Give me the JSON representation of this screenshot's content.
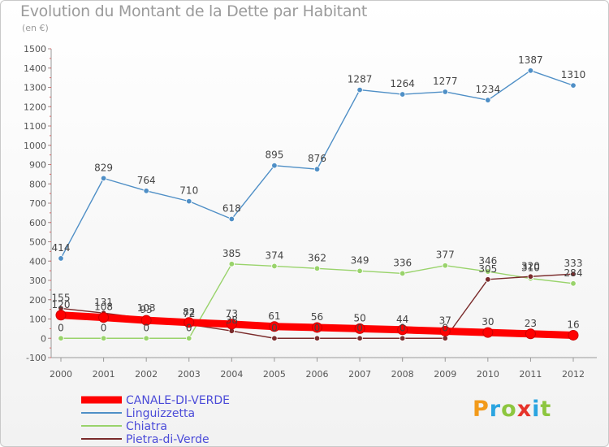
{
  "title": "Evolution du Montant de la Dette par Habitant",
  "unit": "(en €)",
  "logo_text": "Proxiti",
  "chart_data": {
    "type": "line",
    "x": [
      "2000",
      "2001",
      "2002",
      "2003",
      "2004",
      "2005",
      "2006",
      "2007",
      "2008",
      "2009",
      "2010",
      "2011",
      "2012"
    ],
    "ylim": [
      -100,
      1500
    ],
    "yticks": [
      -100,
      0,
      100,
      200,
      300,
      400,
      500,
      600,
      700,
      800,
      900,
      1000,
      1100,
      1200,
      1300,
      1400,
      1500
    ],
    "grid": false,
    "legend_position": "bottom-left",
    "series": [
      {
        "name": "CANALE-DI-VERDE",
        "color": "#ff0000",
        "values": [
          120,
          108,
          93,
          82,
          73,
          61,
          56,
          50,
          44,
          37,
          30,
          23,
          16
        ],
        "labels": [
          "120",
          "108",
          "93",
          "82",
          "73",
          "61",
          "56",
          "50",
          "44",
          "37",
          "30",
          "23",
          "16"
        ]
      },
      {
        "name": "Linguizzetta",
        "color": "#4f8fc6",
        "values": [
          414,
          829,
          764,
          710,
          618,
          895,
          876,
          1287,
          1264,
          1277,
          1234,
          1387,
          1310
        ],
        "labels": [
          "414",
          "829",
          "764",
          "710",
          "618",
          "895",
          "876",
          "1287",
          "1264",
          "1277",
          "1234",
          "1387",
          "1310"
        ]
      },
      {
        "name": "Chiatra",
        "color": "#99d36b",
        "values": [
          0,
          0,
          0,
          0,
          385,
          374,
          362,
          349,
          336,
          377,
          346,
          310,
          284
        ],
        "labels": [
          "0",
          "0",
          "0",
          "0",
          "385",
          "374",
          "362",
          "349",
          "336",
          "377",
          "346",
          "310",
          "284"
        ]
      },
      {
        "name": "Pietra-di-Verde",
        "color": "#7a2b2b",
        "values": [
          155,
          131,
          103,
          72,
          38,
          0,
          0,
          0,
          0,
          0,
          305,
          320,
          333
        ],
        "labels": [
          "155",
          "131",
          "103",
          "72",
          "38",
          "0",
          "0",
          "0",
          "0",
          "0",
          "305",
          "320",
          "333"
        ]
      }
    ]
  }
}
